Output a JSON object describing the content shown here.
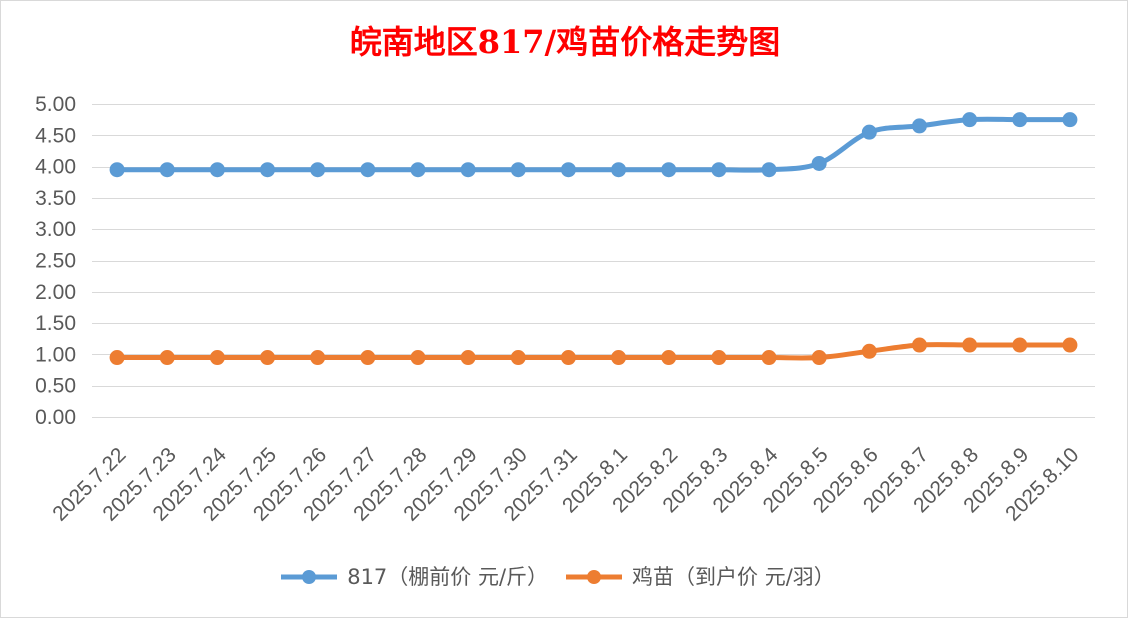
{
  "chart_data": {
    "type": "line",
    "title": "皖南地区817/鸡苗价格走势图",
    "title_color": "#FF0000",
    "categories": [
      "2025.7.22",
      "2025.7.23",
      "2025.7.24",
      "2025.7.25",
      "2025.7.26",
      "2025.7.27",
      "2025.7.28",
      "2025.7.29",
      "2025.7.30",
      "2025.7.31",
      "2025.8.1",
      "2025.8.2",
      "2025.8.3",
      "2025.8.4",
      "2025.8.5",
      "2025.8.6",
      "2025.8.7",
      "2025.8.8",
      "2025.8.9",
      "2025.8.10"
    ],
    "series": [
      {
        "name": "817（棚前价 元/斤）",
        "color": "#5B9BD5",
        "values": [
          3.95,
          3.95,
          3.95,
          3.95,
          3.95,
          3.95,
          3.95,
          3.95,
          3.95,
          3.95,
          3.95,
          3.95,
          3.95,
          3.95,
          4.05,
          4.55,
          4.65,
          4.75,
          4.75,
          4.75
        ]
      },
      {
        "name": "鸡苗（到户价 元/羽）",
        "color": "#ED7D31",
        "values": [
          0.95,
          0.95,
          0.95,
          0.95,
          0.95,
          0.95,
          0.95,
          0.95,
          0.95,
          0.95,
          0.95,
          0.95,
          0.95,
          0.95,
          0.95,
          1.05,
          1.15,
          1.15,
          1.15,
          1.15
        ]
      }
    ],
    "ylim": [
      0,
      5
    ],
    "yticks": [
      "0.00",
      "0.50",
      "1.00",
      "1.50",
      "2.00",
      "2.50",
      "3.00",
      "3.50",
      "4.00",
      "4.50",
      "5.00"
    ],
    "grid": true,
    "smooth": true,
    "grid_color": "#D9D9D9",
    "legend_position": "bottom"
  }
}
